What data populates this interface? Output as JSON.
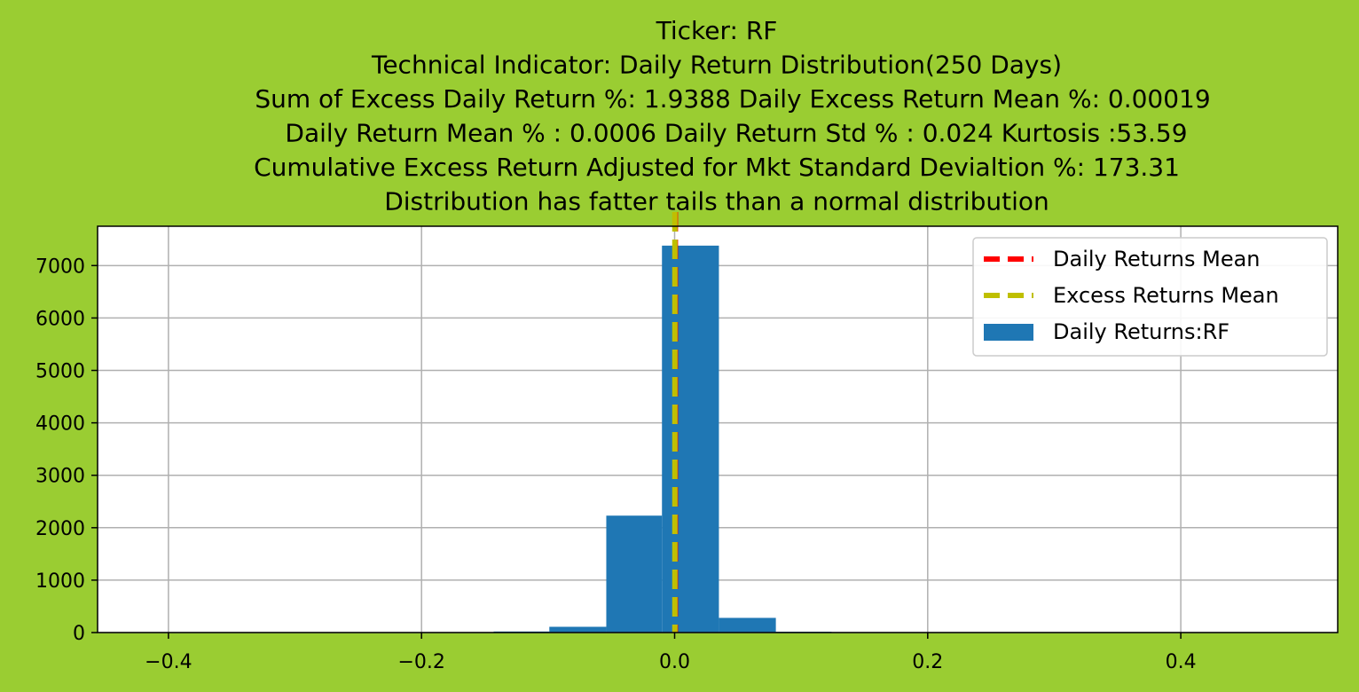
{
  "chart_data": {
    "type": "bar",
    "title_lines": [
      "Ticker: RF",
      "Technical Indicator: Daily Return Distribution(250 Days)",
      "Sum of Excess Daily Return %: 1.9388   Daily Excess Return Mean %: 0.00019",
      "Daily Return Mean % : 0.0006    Daily Return Std % : 0.024  Kurtosis :53.59",
      "Cumulative Excess Return Adjusted for Mkt Standard Devialtion %: 173.31",
      "Distribution has fatter tails than a normal distribution"
    ],
    "xlim": [
      -0.456,
      0.524
    ],
    "ylim": [
      0,
      7750
    ],
    "xticks": [
      -0.4,
      -0.2,
      0.0,
      0.2,
      0.4
    ],
    "xtick_labels": [
      "−0.4",
      "−0.2",
      "0.0",
      "0.2",
      "0.4"
    ],
    "yticks": [
      0,
      1000,
      2000,
      3000,
      4000,
      5000,
      6000,
      7000
    ],
    "ytick_labels": [
      "0",
      "1000",
      "2000",
      "3000",
      "4000",
      "5000",
      "6000",
      "7000"
    ],
    "grid": true,
    "legend_position": "top-right",
    "series": [
      {
        "name": "Daily Returns:RF",
        "kind": "histogram",
        "color": "#1f77b4",
        "bins": [
          {
            "x0": -0.411,
            "x1": -0.366,
            "count": 0
          },
          {
            "x0": -0.366,
            "x1": -0.322,
            "count": 0
          },
          {
            "x0": -0.322,
            "x1": -0.277,
            "count": 0
          },
          {
            "x0": -0.277,
            "x1": -0.233,
            "count": 0
          },
          {
            "x0": -0.233,
            "x1": -0.188,
            "count": 0
          },
          {
            "x0": -0.188,
            "x1": -0.143,
            "count": 0
          },
          {
            "x0": -0.143,
            "x1": -0.099,
            "count": 20
          },
          {
            "x0": -0.099,
            "x1": -0.054,
            "count": 110
          },
          {
            "x0": -0.054,
            "x1": -0.01,
            "count": 2230
          },
          {
            "x0": -0.01,
            "x1": 0.035,
            "count": 7380
          },
          {
            "x0": 0.035,
            "x1": 0.08,
            "count": 280
          },
          {
            "x0": 0.08,
            "x1": 0.124,
            "count": 15
          },
          {
            "x0": 0.124,
            "x1": 0.169,
            "count": 0
          },
          {
            "x0": 0.169,
            "x1": 0.213,
            "count": 0
          },
          {
            "x0": 0.213,
            "x1": 0.258,
            "count": 0
          },
          {
            "x0": 0.258,
            "x1": 0.302,
            "count": 0
          },
          {
            "x0": 0.302,
            "x1": 0.347,
            "count": 0
          },
          {
            "x0": 0.347,
            "x1": 0.391,
            "count": 0
          },
          {
            "x0": 0.391,
            "x1": 0.436,
            "count": 0
          },
          {
            "x0": 0.436,
            "x1": 0.48,
            "count": 0
          }
        ]
      },
      {
        "name": "Daily Returns Mean",
        "kind": "vline",
        "x": 0.0006,
        "color": "#ff0000",
        "style": "dashed"
      },
      {
        "name": "Excess Returns Mean",
        "kind": "vline",
        "x": 0.00019,
        "color": "#bfbf00",
        "style": "dashed"
      }
    ]
  },
  "colors": {
    "background": "#9acd32",
    "plot_area": "#ffffff",
    "grid": "#b0b0b0"
  }
}
